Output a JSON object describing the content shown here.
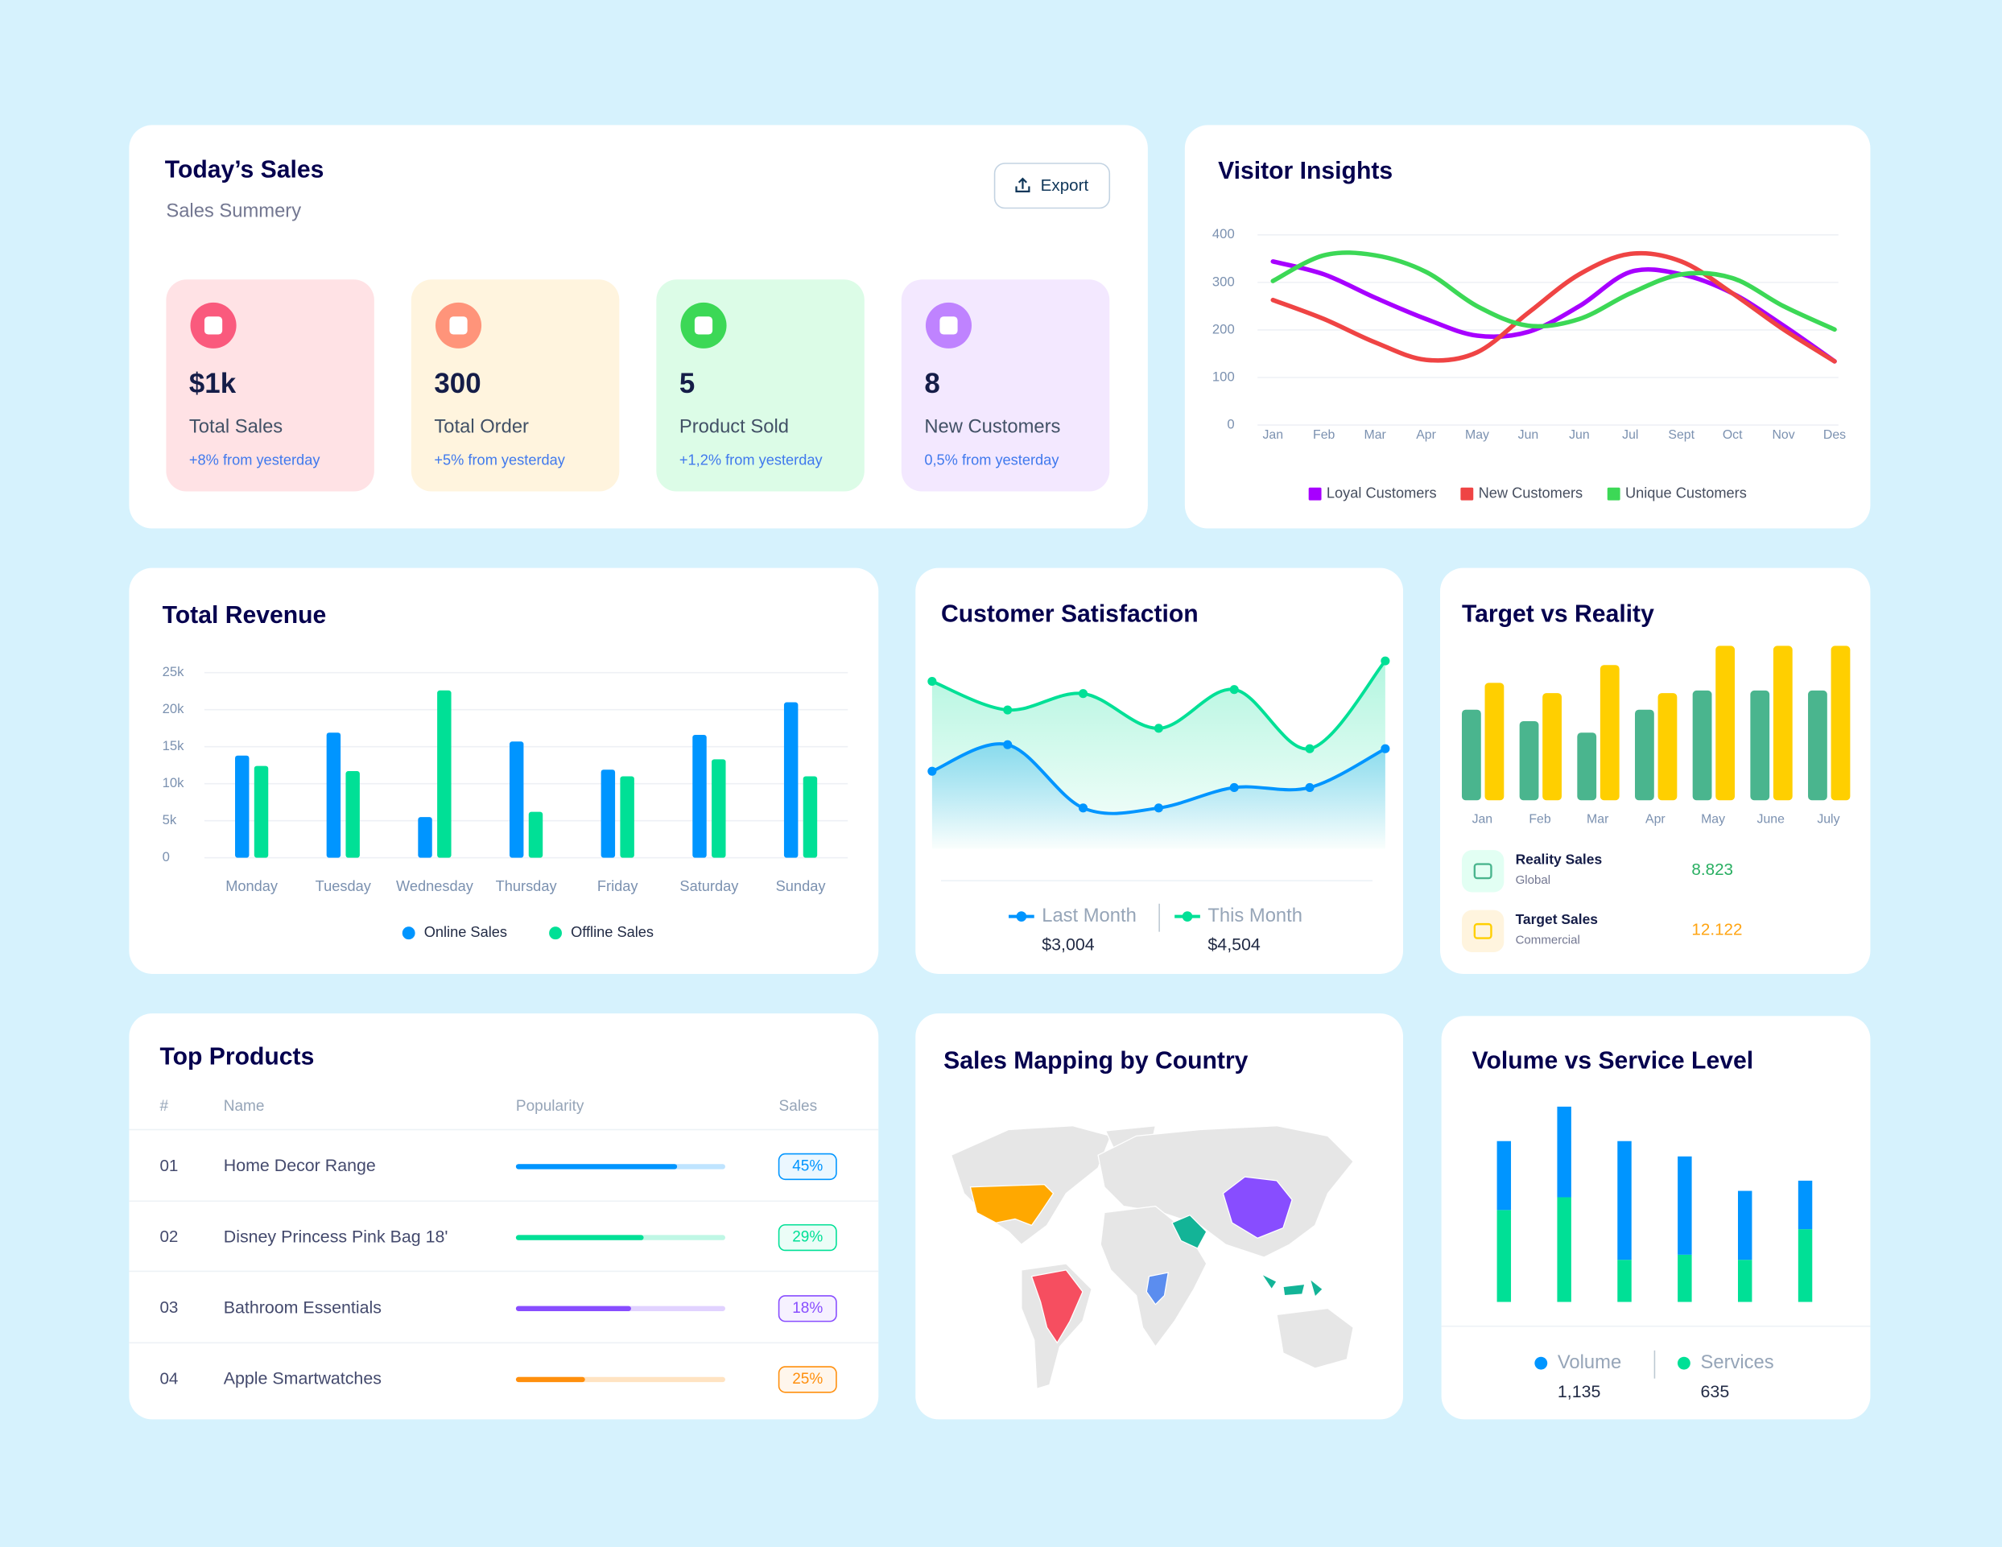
{
  "todays_sales": {
    "title": "Today’s Sales",
    "subtitle": "Sales Summery",
    "button": "Export",
    "cards": [
      {
        "value": "$1k",
        "label": "Total Sales",
        "change": "+8% from yesterday"
      },
      {
        "value": "300",
        "label": "Total Order",
        "change": "+5% from yesterday"
      },
      {
        "value": "5",
        "label": "Product Sold",
        "change": "+1,2% from yesterday"
      },
      {
        "value": "8",
        "label": "New Customers",
        "change": "0,5% from yesterday"
      }
    ]
  },
  "chart_data": [
    {
      "type": "line",
      "title": "Visitor Insights",
      "categories": [
        "Jan",
        "Feb",
        "Mar",
        "Apr",
        "May",
        "Jun",
        "Jun",
        "Jul",
        "Sept",
        "Oct",
        "Nov",
        "Des"
      ],
      "series": [
        {
          "name": "Loyal Customers",
          "color": "#a700ff",
          "values": [
            344,
            317,
            268,
            223,
            188,
            196,
            250,
            322,
            317,
            277,
            209,
            134
          ]
        },
        {
          "name": "New Customers",
          "color": "#ef4444",
          "values": [
            263,
            223,
            174,
            137,
            153,
            236,
            317,
            360,
            344,
            277,
            201,
            134
          ]
        },
        {
          "name": "Unique Customers",
          "color": "#3cd856",
          "values": [
            303,
            357,
            357,
            322,
            250,
            209,
            223,
            277,
            317,
            309,
            250,
            201
          ]
        }
      ],
      "ylim": [
        0,
        400
      ],
      "yticks": [
        0,
        100,
        200,
        300,
        400
      ],
      "grid": true
    },
    {
      "type": "bar",
      "title": "Total Revenue",
      "categories": [
        "Monday",
        "Tuesday",
        "Wednesday",
        "Thursday",
        "Friday",
        "Saturday",
        "Sunday"
      ],
      "series": [
        {
          "name": "Online Sales",
          "color": "#0095ff",
          "values": [
            13800,
            16900,
            5500,
            15700,
            11900,
            16600,
            21000
          ]
        },
        {
          "name": "Offline Sales",
          "color": "#00e096",
          "values": [
            12400,
            11700,
            22600,
            6200,
            11000,
            13300,
            11000
          ]
        }
      ],
      "ylim": [
        0,
        25000
      ],
      "yticks": [
        0,
        {
          "value": 5000,
          "label": "5k"
        },
        {
          "value": 10000,
          "label": "10k"
        },
        {
          "value": 15000,
          "label": "15k"
        },
        {
          "value": 20000,
          "label": "20k"
        },
        {
          "value": 25000,
          "label": "25k"
        }
      ],
      "grid": true
    },
    {
      "type": "area",
      "title": "Customer Satisfaction",
      "series": [
        {
          "name": "Last Month",
          "color": "#0095ff",
          "total": "$3,004",
          "values": [
            38,
            51,
            20,
            20,
            30,
            30,
            49
          ]
        },
        {
          "name": "This Month",
          "color": "#00e096",
          "total": "$4,504",
          "values": [
            82,
            68,
            76,
            59,
            78,
            49,
            92
          ]
        }
      ],
      "ylim": [
        0,
        100
      ]
    },
    {
      "type": "bar",
      "title": "Target vs Reality",
      "categories": [
        "Jan",
        "Feb",
        "Mar",
        "Apr",
        "May",
        "June",
        "July"
      ],
      "series": [
        {
          "name": "Reality Sales",
          "subtitle": "Global",
          "total": "8.823",
          "color": "#4ab58e",
          "values": [
            71,
            62,
            53,
            71,
            86,
            86,
            86
          ]
        },
        {
          "name": "Target Sales",
          "subtitle": "Commercial",
          "total": "12.122",
          "color": "#ffcf00",
          "values": [
            92,
            84,
            106,
            84,
            121,
            121,
            121
          ]
        }
      ],
      "ylim": [
        0,
        125
      ]
    },
    {
      "type": "stacked_bar",
      "title": "Volume vs Service Level",
      "series": [
        {
          "name": "Volume",
          "color": "#0095ff",
          "total": "1,135",
          "values": [
            54,
            71,
            93,
            77,
            54,
            38
          ]
        },
        {
          "name": "Services",
          "color": "#00e096",
          "total": "635",
          "values": [
            72,
            82,
            33,
            37,
            33,
            57
          ]
        }
      ],
      "ylim": [
        0,
        160
      ]
    }
  ],
  "top_products": {
    "title": "Top Products",
    "columns": [
      "#",
      "Name",
      "Popularity",
      "Sales"
    ],
    "rows": [
      {
        "rank": "01",
        "name": "Home Decor Range",
        "popularity": 77,
        "sales": "45%",
        "color": "#0095ff"
      },
      {
        "rank": "02",
        "name": "Disney Princess Pink Bag 18'",
        "popularity": 61,
        "sales": "29%",
        "color": "#00e096"
      },
      {
        "rank": "03",
        "name": "Bathroom Essentials",
        "popularity": 55,
        "sales": "18%",
        "color": "#884dff"
      },
      {
        "rank": "04",
        "name": "Apple Smartwatches",
        "popularity": 33,
        "sales": "25%",
        "color": "#ff8f0d"
      }
    ]
  },
  "sales_map": {
    "title": "Sales Mapping by Country"
  }
}
